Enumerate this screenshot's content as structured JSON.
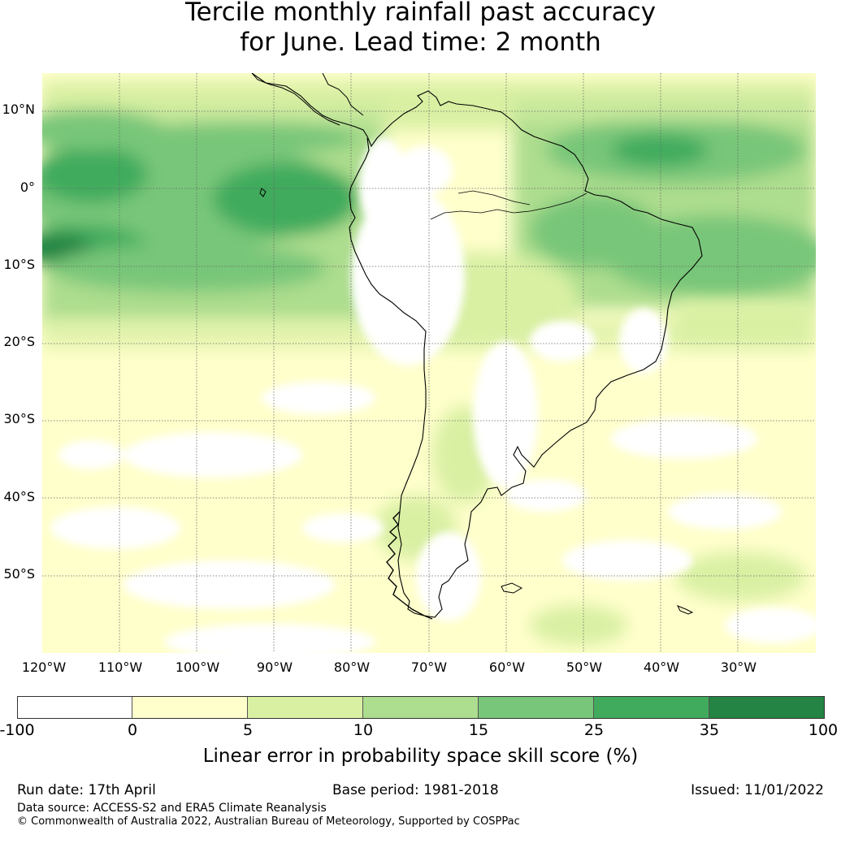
{
  "title_line1": "Tercile monthly rainfall past accuracy",
  "title_line2": "for June. Lead time: 2 month",
  "map": {
    "region": "South America",
    "lon_range": [
      -125,
      25
    ],
    "lat_range": [
      -60,
      15
    ],
    "lat_labels": [
      "10°N",
      "0°",
      "10°S",
      "20°S",
      "30°S",
      "40°S",
      "50°S"
    ],
    "lon_labels": [
      "120°W",
      "110°W",
      "100°W",
      "90°W",
      "80°W",
      "70°W",
      "60°W",
      "50°W",
      "40°W",
      "30°W"
    ],
    "gridlines": true
  },
  "colorbar": {
    "ticks": [
      "-100",
      "0",
      "5",
      "10",
      "15",
      "25",
      "35",
      "100"
    ],
    "colors": [
      "#ffffff",
      "#ffffcc",
      "#d9f0a3",
      "#addd8e",
      "#78c679",
      "#41ab5d",
      "#238443"
    ],
    "label": "Linear error in probability space skill score (%)"
  },
  "footer": {
    "run_date": "Run date: 17th April",
    "base_period": "Base period: 1981-2018",
    "issued": "Issued: 11/01/2022",
    "data_source": "Data source: ACCESS-S2 and ERA5 Climate Reanalysis",
    "copyright": "© Commonwealth of Australia 2022, Australian Bureau of Meteorology, Supported by COSPPac"
  }
}
